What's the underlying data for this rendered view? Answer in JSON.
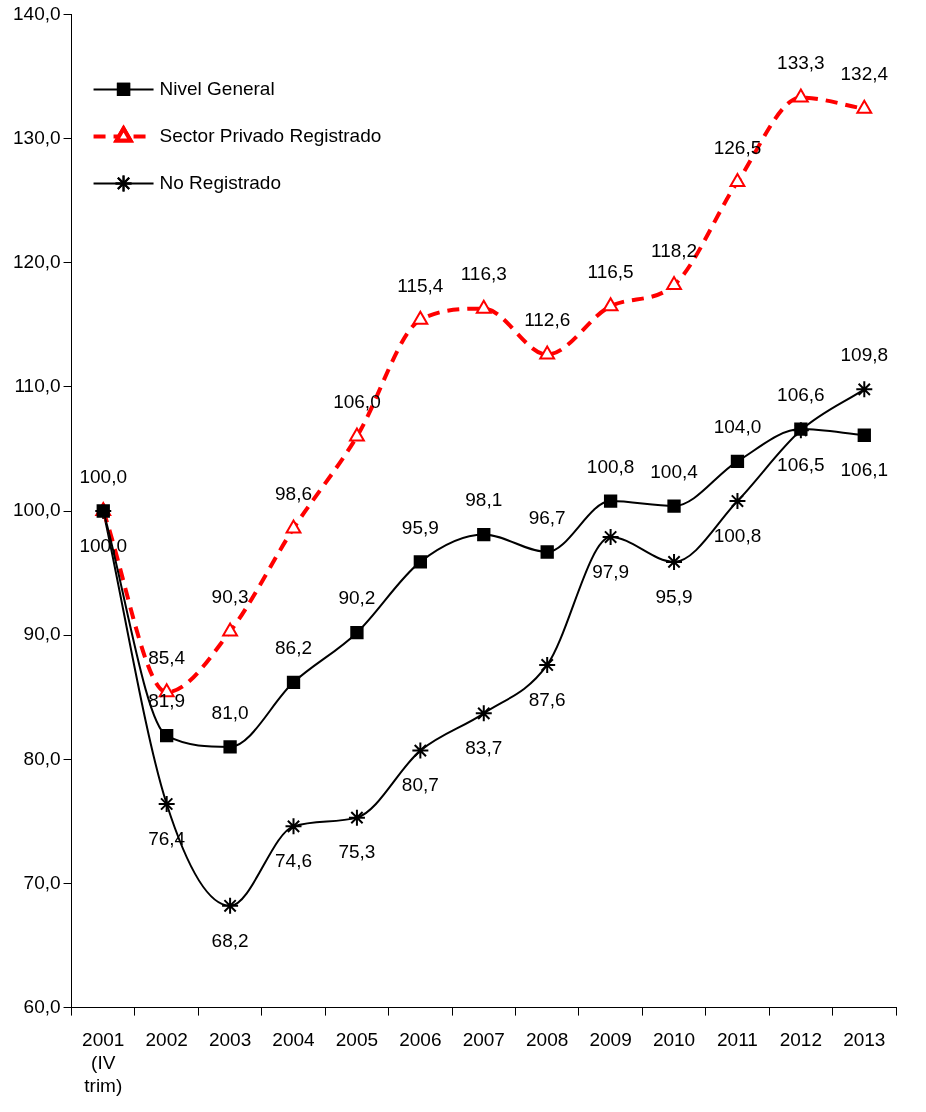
{
  "chart_data": {
    "type": "line",
    "categories": [
      "2001 (IV trim)",
      "2002",
      "2003",
      "2004",
      "2005",
      "2006",
      "2007",
      "2008",
      "2009",
      "2010",
      "2011",
      "2012",
      "2013"
    ],
    "series": [
      {
        "name": "Nivel General",
        "color": "#000000",
        "marker": "square",
        "line_style": "solid",
        "values": [
          100.0,
          81.9,
          81.0,
          86.2,
          90.2,
          95.9,
          98.1,
          96.7,
          100.8,
          100.4,
          104.0,
          106.6,
          106.1
        ],
        "value_labels": [
          null,
          "81,9",
          "81,0",
          "86,2",
          "90,2",
          "95,9",
          "98,1",
          "96,7",
          "100,8",
          "100,4",
          "104,0",
          "106,6",
          "106,1"
        ]
      },
      {
        "name": "Sector Privado Registrado",
        "color": "#ff0000",
        "marker": "triangle",
        "line_style": "dashed",
        "values": [
          100.0,
          85.4,
          90.3,
          98.6,
          106.0,
          115.4,
          116.3,
          112.6,
          116.5,
          118.2,
          126.5,
          133.3,
          132.4
        ],
        "value_labels": [
          "100,0",
          "85,4",
          "90,3",
          "98,6",
          "106,0",
          "115,4",
          "116,3",
          "112,6",
          "116,5",
          "118,2",
          "126,5",
          "133,3",
          "132,4"
        ]
      },
      {
        "name": "No Registrado",
        "color": "#000000",
        "marker": "cross",
        "line_style": "solid",
        "values": [
          100.0,
          76.4,
          68.2,
          74.6,
          75.3,
          80.7,
          83.7,
          87.6,
          97.9,
          95.9,
          100.8,
          106.5,
          109.8
        ],
        "value_labels": [
          "100,0",
          "76,4",
          "68,2",
          "74,6",
          "75,3",
          "80,7",
          "83,7",
          "87,6",
          "97,9",
          "95,9",
          "100,8",
          "106,5",
          "109,8"
        ]
      }
    ],
    "ylim": [
      60,
      140
    ],
    "yticks": [
      {
        "value": 60,
        "label": "60,0"
      },
      {
        "value": 70,
        "label": "70,0"
      },
      {
        "value": 80,
        "label": "80,0"
      },
      {
        "value": 90,
        "label": "90,0"
      },
      {
        "value": 100,
        "label": "100,0"
      },
      {
        "value": 110,
        "label": "110,0"
      },
      {
        "value": 120,
        "label": "120,0"
      },
      {
        "value": 130,
        "label": "130,0"
      },
      {
        "value": 140,
        "label": "140,0"
      }
    ],
    "grid": false,
    "legend": "top left"
  }
}
